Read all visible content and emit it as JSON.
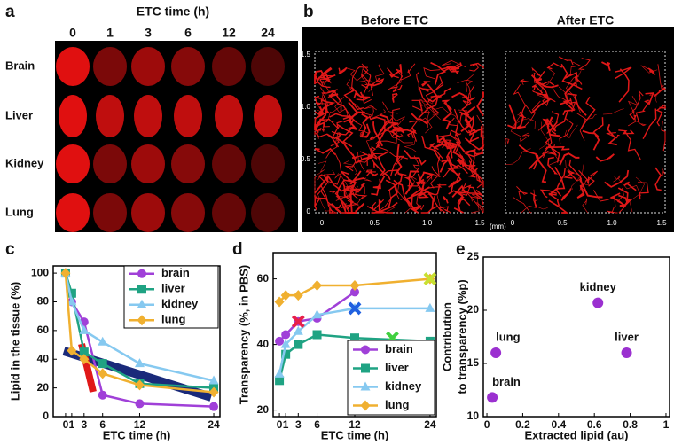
{
  "panel_a": {
    "label": "a",
    "title": "ETC time (h)",
    "columns": [
      "0",
      "1",
      "3",
      "6",
      "12",
      "24"
    ],
    "rows": [
      "Brain",
      "Liver",
      "Kidney",
      "Lung"
    ]
  },
  "panel_b": {
    "label": "b",
    "views": [
      "Before ETC",
      "After ETC"
    ],
    "yticks": [
      "1.5",
      "1.0",
      "0.5",
      "0"
    ],
    "xticks": [
      "0",
      "0.5",
      "1.0",
      "1.5"
    ],
    "unit": "(mm)"
  },
  "chart_data": [
    {
      "type": "line",
      "panel_label": "c",
      "xlabel": "ETC time (h)",
      "ylabel": "Lipid in the tissue (%)",
      "x": [
        0,
        1,
        3,
        6,
        12,
        24
      ],
      "xlim": [
        -2,
        25
      ],
      "ylim": [
        0,
        105
      ],
      "xticks": [
        0,
        1,
        3,
        6,
        12,
        24
      ],
      "yticks": [
        0,
        20,
        40,
        60,
        80,
        100
      ],
      "legend": "upper right",
      "series": [
        {
          "name": "brain",
          "color": "#a040d8",
          "marker": "circle",
          "values": [
            100,
            80,
            66,
            15,
            9,
            7
          ]
        },
        {
          "name": "liver",
          "color": "#1fa383",
          "marker": "square",
          "values": [
            100,
            86,
            45,
            37,
            23,
            20
          ]
        },
        {
          "name": "kidney",
          "color": "#86c9f0",
          "marker": "triangle",
          "values": [
            100,
            80,
            60,
            52,
            37,
            25
          ]
        },
        {
          "name": "lung",
          "color": "#f0b030",
          "marker": "diamond",
          "values": [
            100,
            46,
            40,
            30,
            22,
            17
          ]
        }
      ]
    },
    {
      "type": "line",
      "panel_label": "d",
      "xlabel": "ETC time (h)",
      "ylabel": "Transparency (%, in PBS)",
      "x": [
        0,
        1,
        3,
        6,
        12,
        24
      ],
      "xlim": [
        -1,
        25
      ],
      "ylim": [
        18,
        68
      ],
      "xticks": [
        0,
        1,
        3,
        6,
        12,
        24
      ],
      "yticks": [
        20,
        40,
        60
      ],
      "legend": "lower right",
      "series": [
        {
          "name": "brain",
          "color": "#a040d8",
          "marker": "circle",
          "values": [
            41,
            43,
            47,
            48,
            56,
            null
          ]
        },
        {
          "name": "liver",
          "color": "#1fa383",
          "marker": "square",
          "values": [
            29,
            37,
            40,
            43,
            42,
            41
          ]
        },
        {
          "name": "kidney",
          "color": "#86c9f0",
          "marker": "triangle",
          "values": [
            31,
            40,
            44,
            49,
            51,
            51
          ]
        },
        {
          "name": "lung",
          "color": "#f0b030",
          "marker": "diamond",
          "values": [
            53,
            55,
            55,
            58,
            58,
            60
          ]
        }
      ],
      "markers": [
        {
          "x": 3,
          "y": 47,
          "color": "#e8204a"
        },
        {
          "x": 12,
          "y": 51,
          "color": "#2060e0"
        },
        {
          "x": 18,
          "y": 42,
          "color": "#40d040"
        },
        {
          "x": 24,
          "y": 60,
          "color": "#c8e030"
        }
      ]
    },
    {
      "type": "scatter",
      "panel_label": "e",
      "xlabel": "Extracted lipid (au)",
      "ylabel": [
        "Contribution",
        "to transparency (%p)"
      ],
      "xlim": [
        -0.02,
        1.02
      ],
      "ylim": [
        10,
        25
      ],
      "xticks": [
        0,
        0.2,
        0.4,
        0.6,
        0.8,
        1
      ],
      "yticks": [
        10,
        15,
        20,
        25
      ],
      "color": "#9b30d0",
      "points": [
        {
          "label": "brain",
          "x": 0.03,
          "y": 11.8
        },
        {
          "label": "lung",
          "x": 0.05,
          "y": 16
        },
        {
          "label": "kidney",
          "x": 0.62,
          "y": 20.7
        },
        {
          "label": "liver",
          "x": 0.78,
          "y": 16
        }
      ]
    }
  ]
}
